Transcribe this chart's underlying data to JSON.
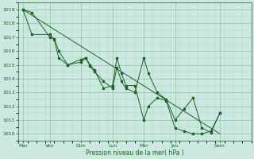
{
  "xlabel": "Pression niveau de la mer( hPa )",
  "bg_color": "#cce8e0",
  "line_color": "#1a6620",
  "grid_major_color": "#7ab898",
  "grid_minor_color": "#a8d4c8",
  "ylim": [
    1009.5,
    1019.5
  ],
  "yticks": [
    1010,
    1011,
    1012,
    1013,
    1014,
    1015,
    1016,
    1017,
    1018,
    1019
  ],
  "xlim": [
    0,
    26
  ],
  "xtick_positions": [
    0.5,
    3.5,
    7.0,
    10.5,
    14.0,
    17.5,
    22.5
  ],
  "xtick_labels": [
    "Mar",
    "Ven",
    "Dim",
    "Lun",
    "Mer",
    "Jeu",
    "Sam"
  ],
  "series1_x": [
    0.5,
    1.5,
    3.5,
    4.0,
    4.5,
    5.5,
    7.0,
    7.5,
    8.0,
    8.5,
    9.5,
    10.5,
    11.0,
    11.5,
    12.0,
    13.0,
    14.0,
    14.5,
    15.5,
    16.5,
    17.5,
    18.5,
    19.5,
    20.5,
    21.5,
    22.5
  ],
  "series1_y": [
    1019.0,
    1018.8,
    1017.0,
    1016.9,
    1016.0,
    1015.0,
    1015.2,
    1015.5,
    1014.9,
    1014.5,
    1013.8,
    1013.3,
    1014.8,
    1013.8,
    1013.3,
    1013.0,
    1015.5,
    1014.4,
    1013.0,
    1012.5,
    1011.0,
    1011.8,
    1012.6,
    1010.4,
    1010.1,
    1011.5
  ],
  "series2_x": [
    0.5,
    1.5,
    3.5,
    4.0,
    4.5,
    5.5,
    7.0,
    7.5,
    8.0,
    8.5,
    9.5,
    10.5,
    11.0,
    11.5,
    12.0,
    13.0,
    14.0,
    14.5,
    15.5,
    16.5,
    17.5,
    18.5,
    19.5,
    20.5,
    21.5,
    22.5
  ],
  "series2_y": [
    1019.0,
    1017.2,
    1017.2,
    1016.8,
    1015.5,
    1015.0,
    1015.4,
    1015.5,
    1015.0,
    1014.6,
    1013.3,
    1013.5,
    1015.5,
    1014.4,
    1013.5,
    1013.5,
    1011.0,
    1012.0,
    1012.6,
    1012.4,
    1010.4,
    1010.2,
    1010.0,
    1010.0,
    1010.2,
    1011.5
  ],
  "trend_x": [
    0.5,
    22.5
  ],
  "trend_y": [
    1019.0,
    1010.0
  ]
}
